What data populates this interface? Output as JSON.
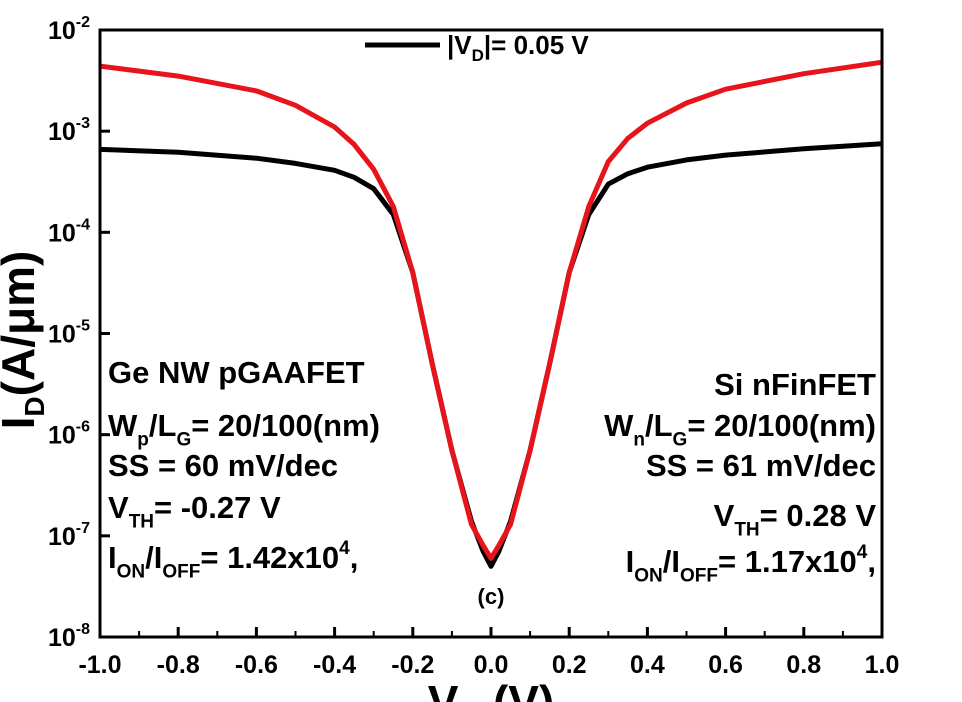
{
  "chart_data": {
    "type": "line",
    "y_scale": "log",
    "xlim": [
      -1.0,
      1.0
    ],
    "ylim": [
      1e-08,
      0.01
    ],
    "x_ticks": [
      "-1.0",
      "-0.8",
      "-0.6",
      "-0.4",
      "-0.2",
      "0.0",
      "0.2",
      "0.4",
      "0.6",
      "0.8",
      "1.0"
    ],
    "y_ticks": [
      {
        "base": "10",
        "exp": "-2"
      },
      {
        "base": "10",
        "exp": "-3"
      },
      {
        "base": "10",
        "exp": "-4"
      },
      {
        "base": "10",
        "exp": "-5"
      },
      {
        "base": "10",
        "exp": "-6"
      },
      {
        "base": "10",
        "exp": "-7"
      },
      {
        "base": "10",
        "exp": "-8"
      }
    ],
    "xlabel": {
      "main": "V",
      "sub": "G",
      "unit": " (V)"
    },
    "ylabel": {
      "main": "I",
      "sub": "D",
      "unit": "(A/μm)"
    },
    "legend": {
      "position": "top-center",
      "entries": [
        {
          "text": "|V",
          "sub": "D",
          "rest": "|= 0.05 V",
          "color": "#000000"
        }
      ]
    },
    "series": [
      {
        "color": "#000000",
        "x": [
          -1.0,
          -0.8,
          -0.6,
          -0.5,
          -0.4,
          -0.35,
          -0.3,
          -0.25,
          -0.2,
          -0.15,
          -0.1,
          -0.05,
          -0.02,
          0.0,
          0.02,
          0.05,
          0.1,
          0.15,
          0.2,
          0.25,
          0.3,
          0.35,
          0.4,
          0.5,
          0.6,
          0.8,
          1.0
        ],
        "y": [
          0.00066,
          0.00062,
          0.00054,
          0.00048,
          0.00041,
          0.00035,
          0.00027,
          0.00015,
          4e-05,
          5e-06,
          7e-07,
          1.4e-07,
          7e-08,
          5e-08,
          7e-08,
          1.4e-07,
          7e-07,
          5e-06,
          4e-05,
          0.00015,
          0.0003,
          0.00038,
          0.00044,
          0.00052,
          0.00058,
          0.00067,
          0.00075
        ]
      },
      {
        "color": "#e8141b",
        "x": [
          -1.0,
          -0.8,
          -0.6,
          -0.5,
          -0.4,
          -0.35,
          -0.3,
          -0.25,
          -0.2,
          -0.15,
          -0.1,
          -0.05,
          -0.02,
          0.0,
          0.02,
          0.05,
          0.1,
          0.15,
          0.2,
          0.25,
          0.3,
          0.35,
          0.4,
          0.5,
          0.6,
          0.8,
          1.0
        ],
        "y": [
          0.0044,
          0.0035,
          0.0025,
          0.0018,
          0.0011,
          0.00074,
          0.00042,
          0.00018,
          4e-05,
          5e-06,
          7e-07,
          1.3e-07,
          8e-08,
          6e-08,
          8e-08,
          1.3e-07,
          7e-07,
          5e-06,
          4e-05,
          0.00018,
          0.0005,
          0.00085,
          0.0012,
          0.0019,
          0.0026,
          0.0037,
          0.0048
        ]
      }
    ],
    "annotations": {
      "left": [
        [
          {
            "t": "Ge NW pGAAFET"
          }
        ],
        [
          {
            "t": "W"
          },
          {
            "t": "p",
            "s": "sub"
          },
          {
            "t": "/L"
          },
          {
            "t": "G",
            "s": "sub"
          },
          {
            "t": "= 20/100(nm)"
          }
        ],
        [
          {
            "t": "SS = 60 mV/dec"
          }
        ],
        [
          {
            "t": "V"
          },
          {
            "t": "TH",
            "s": "sub"
          },
          {
            "t": "= -0.27 V"
          }
        ],
        [
          {
            "t": "I"
          },
          {
            "t": "ON",
            "s": "sub"
          },
          {
            "t": "/I"
          },
          {
            "t": "OFF",
            "s": "sub"
          },
          {
            "t": "= 1.42x10"
          },
          {
            "t": "4",
            "s": "sup"
          },
          {
            "t": ","
          }
        ]
      ],
      "right": [
        [
          {
            "t": "Si nFinFET"
          }
        ],
        [
          {
            "t": "W"
          },
          {
            "t": "n",
            "s": "sub"
          },
          {
            "t": "/L"
          },
          {
            "t": "G",
            "s": "sub"
          },
          {
            "t": "= 20/100(nm)"
          }
        ],
        [
          {
            "t": "SS = 61 mV/dec"
          }
        ],
        [
          {
            "t": "V"
          },
          {
            "t": "TH",
            "s": "sub"
          },
          {
            "t": "= 0.28 V"
          }
        ],
        [
          {
            "t": "I"
          },
          {
            "t": "ON",
            "s": "sub"
          },
          {
            "t": "/I"
          },
          {
            "t": "OFF",
            "s": "sub"
          },
          {
            "t": "= 1.17x10"
          },
          {
            "t": "4",
            "s": "sup"
          },
          {
            "t": ","
          }
        ]
      ],
      "panel_label": "(c)"
    }
  }
}
